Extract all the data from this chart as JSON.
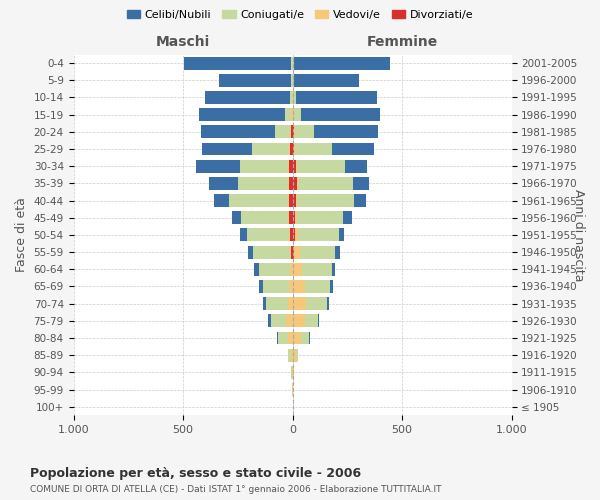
{
  "age_groups": [
    "100+",
    "95-99",
    "90-94",
    "85-89",
    "80-84",
    "75-79",
    "70-74",
    "65-69",
    "60-64",
    "55-59",
    "50-54",
    "45-49",
    "40-44",
    "35-39",
    "30-34",
    "25-29",
    "20-24",
    "15-19",
    "10-14",
    "5-9",
    "0-4"
  ],
  "birth_years": [
    "≤ 1905",
    "1906-1910",
    "1911-1915",
    "1916-1920",
    "1921-1925",
    "1926-1930",
    "1931-1935",
    "1936-1940",
    "1941-1945",
    "1946-1950",
    "1951-1955",
    "1956-1960",
    "1961-1965",
    "1966-1970",
    "1971-1975",
    "1976-1980",
    "1981-1985",
    "1986-1990",
    "1991-1995",
    "1996-2000",
    "2001-2005"
  ],
  "males": {
    "celibi": [
      0,
      0,
      0,
      0,
      5,
      10,
      15,
      20,
      20,
      25,
      30,
      40,
      70,
      130,
      200,
      230,
      340,
      390,
      390,
      330,
      490
    ],
    "coniugati": [
      0,
      2,
      5,
      15,
      45,
      70,
      100,
      120,
      145,
      170,
      195,
      215,
      270,
      230,
      220,
      170,
      70,
      30,
      10,
      5,
      5
    ],
    "vedovi": [
      0,
      1,
      3,
      8,
      20,
      30,
      20,
      15,
      10,
      5,
      5,
      5,
      5,
      5,
      5,
      5,
      5,
      5,
      0,
      0,
      0
    ],
    "divorziati": [
      0,
      0,
      0,
      0,
      0,
      0,
      0,
      0,
      0,
      5,
      10,
      15,
      15,
      15,
      15,
      10,
      5,
      0,
      0,
      0,
      0
    ]
  },
  "females": {
    "nubili": [
      0,
      0,
      0,
      0,
      5,
      5,
      10,
      15,
      15,
      20,
      25,
      40,
      55,
      75,
      100,
      190,
      290,
      360,
      370,
      300,
      440
    ],
    "coniugate": [
      0,
      1,
      3,
      10,
      35,
      60,
      95,
      115,
      135,
      160,
      185,
      210,
      260,
      250,
      220,
      170,
      90,
      40,
      15,
      5,
      5
    ],
    "vedove": [
      0,
      1,
      5,
      15,
      40,
      55,
      60,
      55,
      45,
      30,
      15,
      10,
      5,
      5,
      5,
      5,
      5,
      0,
      0,
      0,
      0
    ],
    "divorziate": [
      0,
      0,
      0,
      0,
      0,
      0,
      0,
      0,
      0,
      5,
      10,
      10,
      15,
      20,
      15,
      5,
      5,
      0,
      0,
      0,
      0
    ]
  },
  "colors": {
    "celibi": "#3a6ea5",
    "coniugati": "#c5d9a0",
    "vedovi": "#f5c87a",
    "divorziati": "#d9302e"
  },
  "xlim": 1000,
  "title": "Popolazione per età, sesso e stato civile - 2006",
  "subtitle": "COMUNE DI ORTA DI ATELLA (CE) - Dati ISTAT 1° gennaio 2006 - Elaborazione TUTTITALIA.IT",
  "ylabel_left": "Fasce di età",
  "ylabel_right": "Anni di nascita",
  "xlabel_left": "Maschi",
  "xlabel_right": "Femmine",
  "bg_color": "#f5f5f5",
  "plot_bg": "#ffffff",
  "legend_labels": [
    "Celibi/Nubili",
    "Coniugati/e",
    "Vedovi/e",
    "Divorziati/e"
  ]
}
